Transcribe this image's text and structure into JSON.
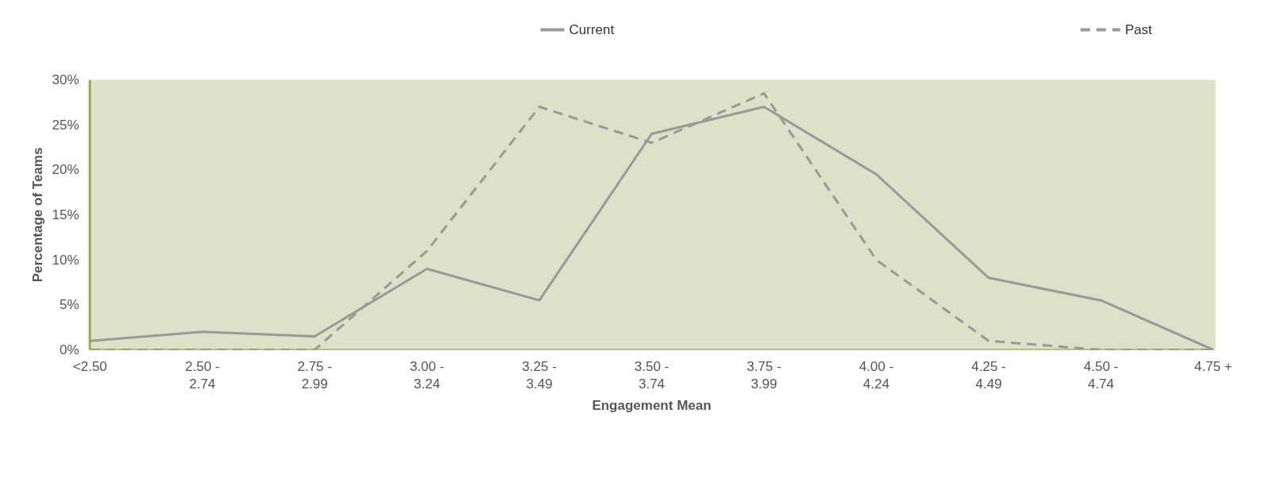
{
  "chart_data": {
    "type": "line",
    "xlabel": "Engagement Mean",
    "ylabel": "Percentage of Teams",
    "categories": [
      "<2.50",
      "2.50 - 2.74",
      "2.75 - 2.99",
      "3.00 - 3.24",
      "3.25 - 3.49",
      "3.50 - 3.74",
      "3.75 - 3.99",
      "4.00 - 4.24",
      "4.25 - 4.49",
      "4.50 - 4.74",
      "4.75 +"
    ],
    "series": [
      {
        "name": "Current",
        "color": "#999999",
        "line_style": "solid",
        "values": [
          1,
          2,
          1.5,
          9,
          5.5,
          24,
          27,
          19.5,
          8,
          5.5,
          0
        ]
      },
      {
        "name": "Past",
        "color": "#999999",
        "line_style": "dashed",
        "values": [
          0,
          0,
          0,
          11,
          27,
          23,
          28.5,
          10,
          1,
          0,
          0
        ]
      }
    ],
    "ylim": [
      0,
      30
    ],
    "yticks": [
      {
        "value": 0,
        "label": "0%"
      },
      {
        "value": 5,
        "label": "5%"
      },
      {
        "value": 10,
        "label": "10%"
      },
      {
        "value": 15,
        "label": "15%"
      },
      {
        "value": 20,
        "label": "20%"
      },
      {
        "value": 25,
        "label": "25%"
      },
      {
        "value": 30,
        "label": "30%"
      }
    ],
    "grid": false,
    "legend": "top"
  }
}
